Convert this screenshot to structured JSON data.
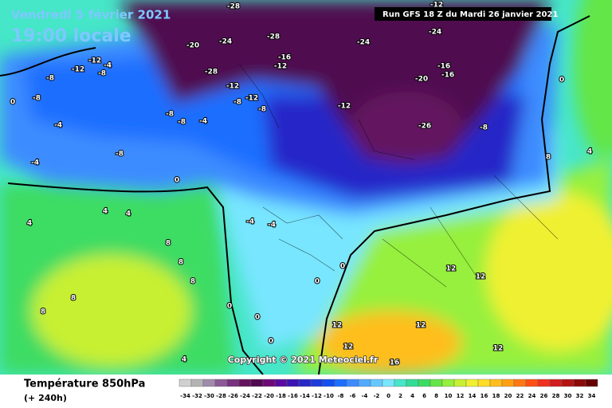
{
  "header": {
    "date": "Vendredi 5 février 2021",
    "time": "19:00 locale",
    "run": "Run GFS 18 Z du Mardi 26 janvier 2021"
  },
  "footer": {
    "title": "Température 850hPa",
    "lead": "(+ 240h)",
    "copyright": "Copyright © 2021 Meteociel.fr"
  },
  "legend": {
    "ticks": [
      -34,
      -32,
      -30,
      -28,
      -26,
      -24,
      -22,
      -20,
      -18,
      -16,
      -14,
      -12,
      -10,
      -8,
      -6,
      -4,
      -2,
      0,
      2,
      4,
      6,
      8,
      10,
      12,
      14,
      16,
      18,
      20,
      22,
      24,
      26,
      28,
      30,
      32,
      34
    ],
    "colors": [
      "#d0d0d0",
      "#b4b4b4",
      "#a08caa",
      "#8c5a96",
      "#78327f",
      "#64145f",
      "#500a50",
      "#6e0a78",
      "#5a0aa0",
      "#3c14b4",
      "#2828c8",
      "#1e3cdc",
      "#1450f0",
      "#1e6eff",
      "#3c8cff",
      "#50aaff",
      "#64c8ff",
      "#78e6ff",
      "#46e6c8",
      "#32dc96",
      "#3cdc64",
      "#64e646",
      "#96f03c",
      "#c8f032",
      "#f0f032",
      "#ffdc28",
      "#ffbe1e",
      "#ffa014",
      "#ff7814",
      "#ff5014",
      "#f0321e",
      "#d21e1e",
      "#b41414",
      "#8c0a0a",
      "#640000"
    ]
  },
  "map": {
    "labels": [
      -20,
      -24,
      -28,
      -28,
      -16,
      -12,
      -12,
      -4,
      -12,
      -8,
      -8,
      -8,
      0,
      -12,
      -8,
      -12,
      -8,
      -8,
      -8,
      -4,
      -8,
      -4,
      -4,
      -24,
      -24,
      -20,
      -16,
      -16,
      -12,
      -26,
      -8,
      0,
      4,
      4,
      4,
      8,
      8,
      8,
      -4,
      -4,
      0,
      0,
      0,
      0,
      0,
      12,
      12,
      16,
      12,
      12,
      12,
      12,
      8,
      4,
      0,
      8,
      8,
      4,
      -12,
      -28
    ]
  }
}
